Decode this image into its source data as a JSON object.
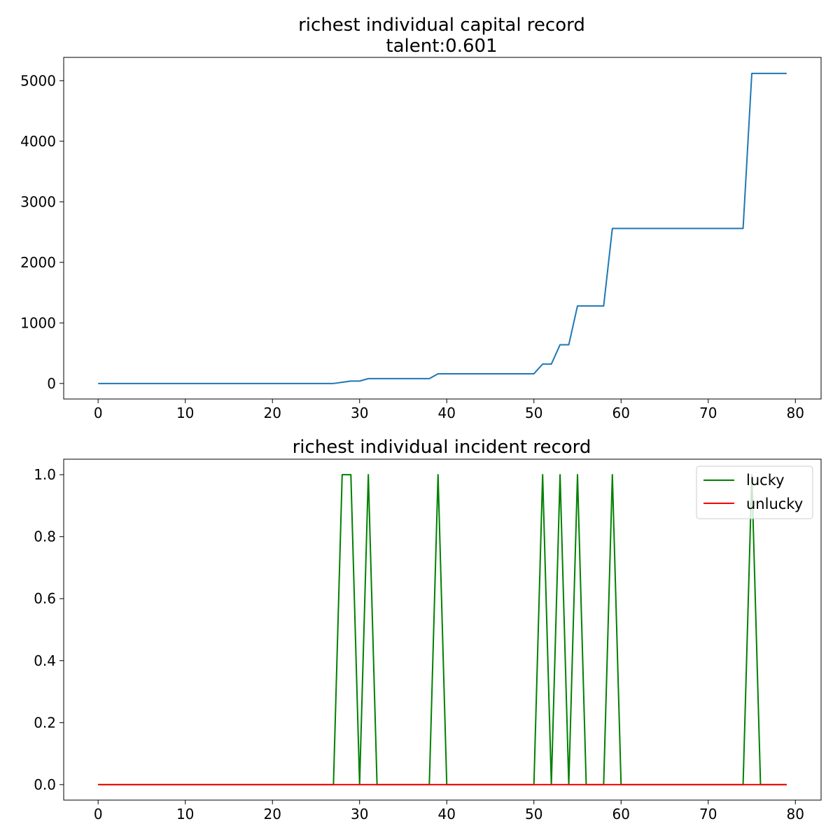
{
  "chart_data": [
    {
      "type": "line",
      "title": "richest individual capital record",
      "subtitle": "talent:0.601",
      "xlabel": "",
      "ylabel": "",
      "xlim": [
        -3.95,
        82.95
      ],
      "ylim": [
        -256.4,
        5384.4
      ],
      "xticks": [
        0,
        10,
        20,
        30,
        40,
        50,
        60,
        70,
        80
      ],
      "yticks": [
        0,
        1000,
        2000,
        3000,
        4000,
        5000
      ],
      "grid": false,
      "series": [
        {
          "color": "#1f77b4",
          "x": [
            0,
            1,
            2,
            3,
            4,
            5,
            6,
            7,
            8,
            9,
            10,
            11,
            12,
            13,
            14,
            15,
            16,
            17,
            18,
            19,
            20,
            21,
            22,
            23,
            24,
            25,
            26,
            27,
            28,
            29,
            30,
            31,
            32,
            33,
            34,
            35,
            36,
            37,
            38,
            39,
            40,
            41,
            42,
            43,
            44,
            45,
            46,
            47,
            48,
            49,
            50,
            51,
            52,
            53,
            54,
            55,
            56,
            57,
            58,
            59,
            60,
            61,
            62,
            63,
            64,
            65,
            66,
            67,
            68,
            69,
            70,
            71,
            72,
            73,
            74,
            75,
            76,
            77,
            78,
            79
          ],
          "values": [
            0,
            0,
            0,
            0,
            0,
            0,
            0,
            0,
            0,
            0,
            0,
            0,
            0,
            0,
            0,
            0,
            0,
            0,
            0,
            0,
            0,
            0,
            0,
            0,
            0,
            0,
            0,
            0,
            20,
            40,
            40,
            80,
            80,
            80,
            80,
            80,
            80,
            80,
            80,
            160,
            160,
            160,
            160,
            160,
            160,
            160,
            160,
            160,
            160,
            160,
            160,
            320,
            320,
            640,
            640,
            1280,
            1280,
            1280,
            1280,
            2560,
            2560,
            2560,
            2560,
            2560,
            2560,
            2560,
            2560,
            2560,
            2560,
            2560,
            2560,
            2560,
            2560,
            2560,
            2560,
            5120,
            5120,
            5120,
            5120,
            5120
          ]
        }
      ]
    },
    {
      "type": "line",
      "title": "richest individual incident record",
      "xlabel": "",
      "ylabel": "",
      "xlim": [
        -3.95,
        82.95
      ],
      "ylim": [
        -0.05,
        1.05
      ],
      "xticks": [
        0,
        10,
        20,
        30,
        40,
        50,
        60,
        70,
        80
      ],
      "yticks": [
        0.0,
        0.2,
        0.4,
        0.6,
        0.8,
        1.0
      ],
      "ytick_labels": [
        "0.0",
        "0.2",
        "0.4",
        "0.6",
        "0.8",
        "1.0"
      ],
      "grid": false,
      "legend_position": "top-right",
      "series": [
        {
          "name": "lucky",
          "color": "#008000",
          "x": [
            0,
            1,
            2,
            3,
            4,
            5,
            6,
            7,
            8,
            9,
            10,
            11,
            12,
            13,
            14,
            15,
            16,
            17,
            18,
            19,
            20,
            21,
            22,
            23,
            24,
            25,
            26,
            27,
            28,
            29,
            30,
            31,
            32,
            33,
            34,
            35,
            36,
            37,
            38,
            39,
            40,
            41,
            42,
            43,
            44,
            45,
            46,
            47,
            48,
            49,
            50,
            51,
            52,
            53,
            54,
            55,
            56,
            57,
            58,
            59,
            60,
            61,
            62,
            63,
            64,
            65,
            66,
            67,
            68,
            69,
            70,
            71,
            72,
            73,
            74,
            75,
            76,
            77,
            78,
            79
          ],
          "values": [
            0,
            0,
            0,
            0,
            0,
            0,
            0,
            0,
            0,
            0,
            0,
            0,
            0,
            0,
            0,
            0,
            0,
            0,
            0,
            0,
            0,
            0,
            0,
            0,
            0,
            0,
            0,
            0,
            1,
            1,
            0,
            1,
            0,
            0,
            0,
            0,
            0,
            0,
            0,
            1,
            0,
            0,
            0,
            0,
            0,
            0,
            0,
            0,
            0,
            0,
            0,
            1,
            0,
            1,
            0,
            1,
            0,
            0,
            0,
            1,
            0,
            0,
            0,
            0,
            0,
            0,
            0,
            0,
            0,
            0,
            0,
            0,
            0,
            0,
            0,
            1,
            0,
            0,
            0,
            0
          ]
        },
        {
          "name": "unlucky",
          "color": "#ff0000",
          "x": [
            0,
            1,
            2,
            3,
            4,
            5,
            6,
            7,
            8,
            9,
            10,
            11,
            12,
            13,
            14,
            15,
            16,
            17,
            18,
            19,
            20,
            21,
            22,
            23,
            24,
            25,
            26,
            27,
            28,
            29,
            30,
            31,
            32,
            33,
            34,
            35,
            36,
            37,
            38,
            39,
            40,
            41,
            42,
            43,
            44,
            45,
            46,
            47,
            48,
            49,
            50,
            51,
            52,
            53,
            54,
            55,
            56,
            57,
            58,
            59,
            60,
            61,
            62,
            63,
            64,
            65,
            66,
            67,
            68,
            69,
            70,
            71,
            72,
            73,
            74,
            75,
            76,
            77,
            78,
            79
          ],
          "values": [
            0,
            0,
            0,
            0,
            0,
            0,
            0,
            0,
            0,
            0,
            0,
            0,
            0,
            0,
            0,
            0,
            0,
            0,
            0,
            0,
            0,
            0,
            0,
            0,
            0,
            0,
            0,
            0,
            0,
            0,
            0,
            0,
            0,
            0,
            0,
            0,
            0,
            0,
            0,
            0,
            0,
            0,
            0,
            0,
            0,
            0,
            0,
            0,
            0,
            0,
            0,
            0,
            0,
            0,
            0,
            0,
            0,
            0,
            0,
            0,
            0,
            0,
            0,
            0,
            0,
            0,
            0,
            0,
            0,
            0,
            0,
            0,
            0,
            0,
            0,
            0,
            0,
            0,
            0,
            0
          ]
        }
      ]
    }
  ]
}
